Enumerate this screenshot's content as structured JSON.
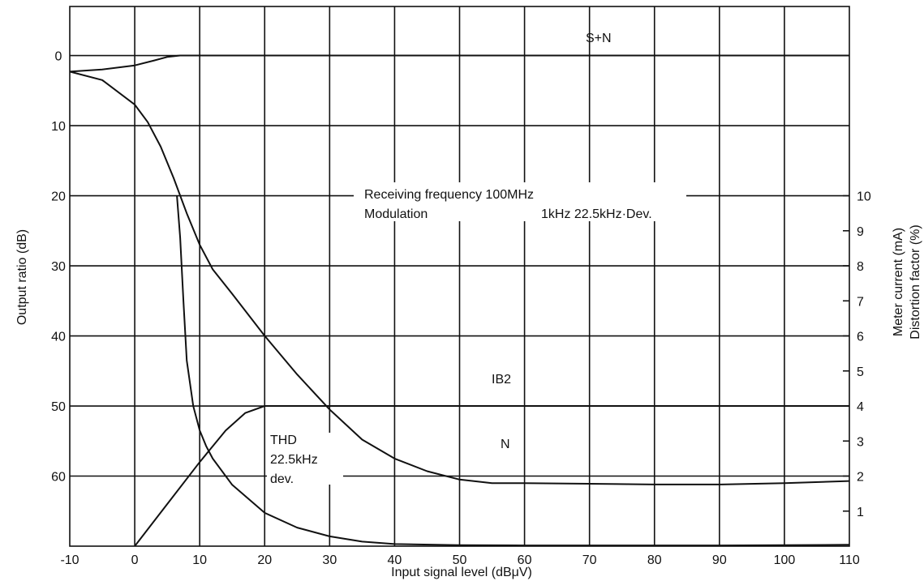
{
  "chart_data": {
    "type": "line",
    "xlabel": "Input signal level (dBμV)",
    "ylabel": "Output ratio (dB)",
    "y2label_line1": "Meter current (mA)",
    "y2label_line2": "Distortion factor (%)",
    "xlim": [
      -10,
      110
    ],
    "ylim": [
      -7,
      70
    ],
    "y_inverted": true,
    "y2lim": [
      0,
      10
    ],
    "grid": true,
    "x_ticks": [
      "-10",
      "0",
      "10",
      "20",
      "30",
      "40",
      "50",
      "60",
      "70",
      "80",
      "90",
      "100",
      "110"
    ],
    "x_tick_values": [
      -10,
      0,
      10,
      20,
      30,
      40,
      50,
      60,
      70,
      80,
      90,
      100,
      110
    ],
    "y_ticks": [
      "0",
      "10",
      "20",
      "30",
      "40",
      "50",
      "60"
    ],
    "y_tick_values": [
      0,
      10,
      20,
      30,
      40,
      50,
      60
    ],
    "y2_ticks": [
      "1",
      "2",
      "3",
      "4",
      "5",
      "6",
      "7",
      "8",
      "9",
      "10"
    ],
    "y2_tick_values": [
      1,
      2,
      3,
      4,
      5,
      6,
      7,
      8,
      9,
      10
    ],
    "annotations": {
      "sn": "S+N",
      "ib2": "IB2",
      "n": "N",
      "conditions_l1": "Receiving frequency 100MHz",
      "conditions_l2_a": "Modulation",
      "conditions_l2_b": "1kHz 22.5kHz·Dev.",
      "thd_l1": "THD",
      "thd_l2": "22.5kHz",
      "thd_l3": "dev."
    },
    "series": [
      {
        "axis": "left",
        "x": [
          -10,
          -5,
          0,
          3,
          5,
          7,
          10,
          20,
          40,
          60,
          80,
          100,
          110
        ],
        "y": [
          2.3,
          2.0,
          1.4,
          0.7,
          0.2,
          0.0,
          0.0,
          0.0,
          0.0,
          0.0,
          0.0,
          0.0,
          0.0
        ]
      },
      {
        "axis": "left",
        "x": [
          -10,
          -5,
          0,
          2,
          4,
          6,
          8,
          10,
          12,
          15,
          20,
          25,
          30,
          35,
          40,
          45,
          50,
          55,
          60,
          70,
          80,
          90,
          100,
          110
        ],
        "y": [
          2.3,
          3.5,
          7.0,
          9.5,
          13.0,
          17.5,
          22.5,
          27.0,
          30.5,
          34.0,
          40.0,
          45.5,
          50.5,
          54.8,
          57.5,
          59.3,
          60.5,
          61.0,
          61.0,
          61.1,
          61.2,
          61.2,
          61.0,
          60.7
        ]
      },
      {
        "axis": "right",
        "x": [
          6.5,
          7,
          7.5,
          8,
          9,
          10,
          11,
          12,
          15,
          20,
          25,
          30,
          35,
          40,
          50,
          60,
          70,
          80,
          90,
          100,
          110
        ],
        "y": [
          10.0,
          8.8,
          7.0,
          5.3,
          4.0,
          3.3,
          2.85,
          2.5,
          1.75,
          0.95,
          0.53,
          0.28,
          0.13,
          0.06,
          0.03,
          0.02,
          0.02,
          0.02,
          0.02,
          0.03,
          0.04
        ]
      },
      {
        "axis": "right",
        "x": [
          0,
          5,
          10,
          14,
          17,
          20,
          110
        ],
        "y": [
          0.0,
          1.2,
          2.4,
          3.3,
          3.8,
          4.0,
          4.0
        ]
      }
    ]
  }
}
